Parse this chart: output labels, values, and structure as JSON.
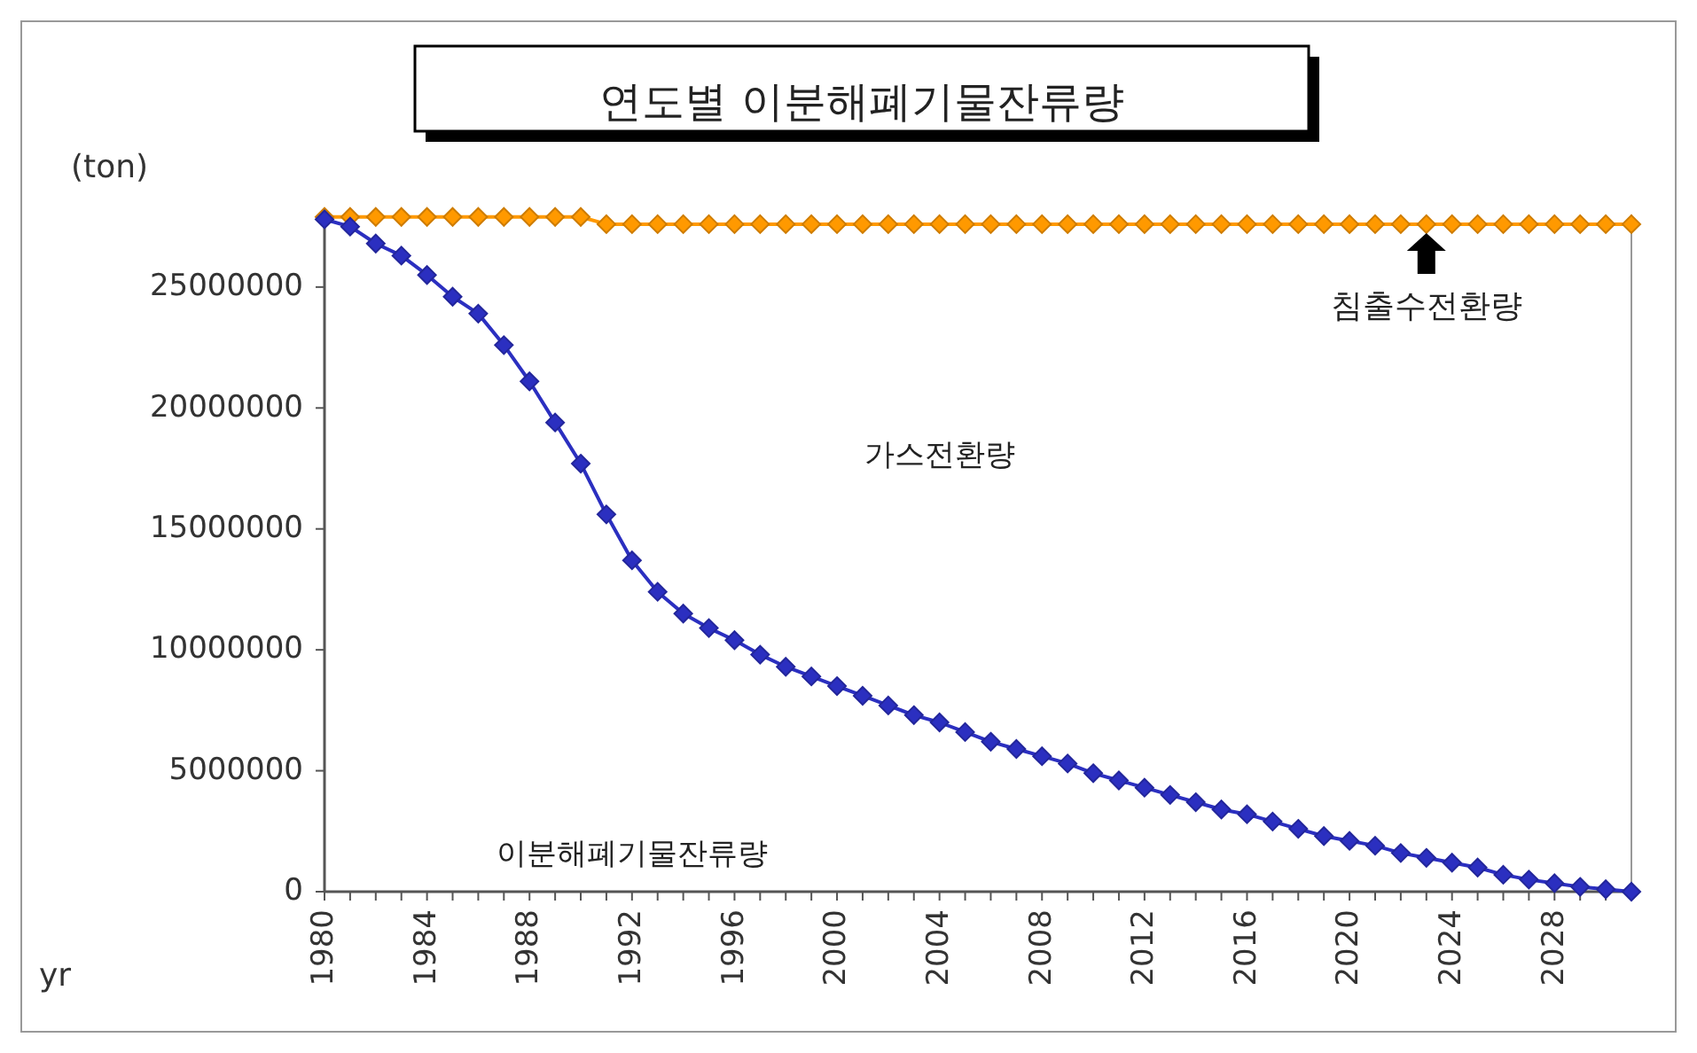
{
  "chart_data": {
    "type": "line",
    "title": "연도별 이분해폐기물잔류량",
    "xlabel": "yr",
    "ylabel": "(ton)",
    "x": [
      1980,
      1981,
      1982,
      1983,
      1984,
      1985,
      1986,
      1987,
      1988,
      1989,
      1990,
      1991,
      1992,
      1993,
      1994,
      1995,
      1996,
      1997,
      1998,
      1999,
      2000,
      2001,
      2002,
      2003,
      2004,
      2005,
      2006,
      2007,
      2008,
      2009,
      2010,
      2011,
      2012,
      2013,
      2014,
      2015,
      2016,
      2017,
      2018,
      2019,
      2020,
      2021,
      2022,
      2023,
      2024,
      2025,
      2026,
      2027,
      2028,
      2029,
      2030,
      2031
    ],
    "series": [
      {
        "color": "#ff9900",
        "values": [
          27900000,
          27900000,
          27900000,
          27900000,
          27900000,
          27900000,
          27900000,
          27900000,
          27900000,
          27900000,
          27900000,
          27600000,
          27600000,
          27600000,
          27600000,
          27600000,
          27600000,
          27600000,
          27600000,
          27600000,
          27600000,
          27600000,
          27600000,
          27600000,
          27600000,
          27600000,
          27600000,
          27600000,
          27600000,
          27600000,
          27600000,
          27600000,
          27600000,
          27600000,
          27600000,
          27600000,
          27600000,
          27600000,
          27600000,
          27600000,
          27600000,
          27600000,
          27600000,
          27600000,
          27600000,
          27600000,
          27600000,
          27600000,
          27600000,
          27600000,
          27600000,
          27600000
        ]
      },
      {
        "color": "#2b2fc0",
        "values": [
          27800000,
          27500000,
          26800000,
          26300000,
          25500000,
          24600000,
          23900000,
          22600000,
          21100000,
          19400000,
          17700000,
          15600000,
          13700000,
          12400000,
          11500000,
          10900000,
          10400000,
          9800000,
          9300000,
          8900000,
          8500000,
          8100000,
          7700000,
          7300000,
          7000000,
          6600000,
          6200000,
          5900000,
          5600000,
          5300000,
          4900000,
          4600000,
          4300000,
          4000000,
          3700000,
          3400000,
          3200000,
          2900000,
          2600000,
          2300000,
          2100000,
          1900000,
          1600000,
          1400000,
          1200000,
          1000000,
          700000,
          500000,
          350000,
          200000,
          100000,
          0
        ]
      }
    ],
    "xlim": [
      1980,
      2031
    ],
    "xticks": [
      1980,
      1984,
      1988,
      1992,
      1996,
      2000,
      2004,
      2008,
      2012,
      2016,
      2020,
      2024,
      2028
    ],
    "ylim": [
      0,
      28000000
    ],
    "yticks": [
      0,
      5000000,
      10000000,
      15000000,
      20000000,
      25000000
    ],
    "grid": false,
    "marker": "diamond",
    "line_style": "solid",
    "annotations": [
      {
        "text": "침출수전환량",
        "x": 2023,
        "y": 27600000
      },
      "가스전환량",
      "이분해폐기물잔류량"
    ]
  }
}
